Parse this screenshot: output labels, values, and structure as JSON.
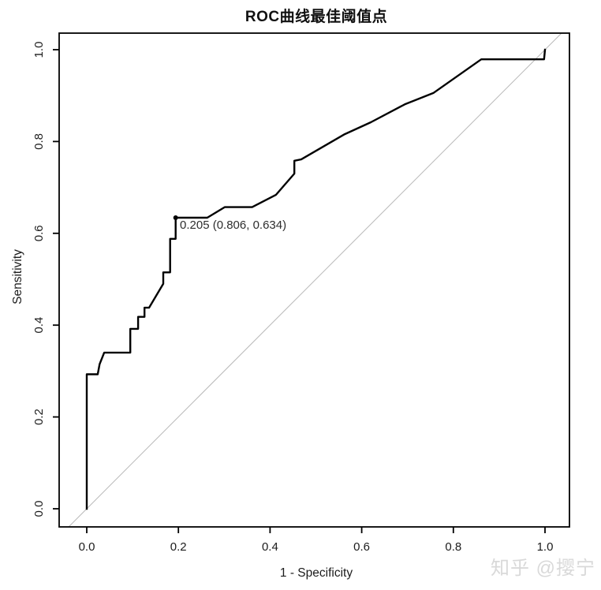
{
  "title": "ROC曲线最佳阈值点",
  "watermark": "知乎 @撄宁",
  "colors": {
    "background": "#ffffff",
    "curve": "#000000",
    "reference_line": "#b8b8b8",
    "axis": "#000000",
    "tick_text": "#1c1c1c",
    "annotation_text": "#2e2e2e",
    "watermark_text": "#d9d9d9"
  },
  "chart_data": {
    "type": "line",
    "title": "ROC曲线最佳阈值点",
    "xlabel": "1 - Specificity",
    "ylabel": "Sensitivity",
    "xlim": [
      0,
      1
    ],
    "ylim": [
      0,
      1
    ],
    "grid": false,
    "legend": "none",
    "x_ticks": [
      0.0,
      0.2,
      0.4,
      0.6,
      0.8,
      1.0
    ],
    "x_tick_labels": [
      "0.0",
      "0.2",
      "0.4",
      "0.6",
      "0.8",
      "1.0"
    ],
    "y_ticks": [
      0.0,
      0.2,
      0.4,
      0.6,
      0.8,
      1.0
    ],
    "y_tick_labels": [
      "0.0",
      "0.2",
      "0.4",
      "0.6",
      "0.8",
      "1.0"
    ],
    "series": [
      {
        "name": "ROC curve",
        "color": "#000000",
        "width": 2.4,
        "points": [
          [
            0.0,
            0.0
          ],
          [
            0.0,
            0.293
          ],
          [
            0.024,
            0.293
          ],
          [
            0.028,
            0.315
          ],
          [
            0.038,
            0.34
          ],
          [
            0.095,
            0.34
          ],
          [
            0.095,
            0.392
          ],
          [
            0.112,
            0.392
          ],
          [
            0.112,
            0.418
          ],
          [
            0.126,
            0.418
          ],
          [
            0.126,
            0.438
          ],
          [
            0.136,
            0.438
          ],
          [
            0.167,
            0.49
          ],
          [
            0.167,
            0.515
          ],
          [
            0.182,
            0.515
          ],
          [
            0.182,
            0.588
          ],
          [
            0.194,
            0.588
          ],
          [
            0.194,
            0.634
          ],
          [
            0.263,
            0.634
          ],
          [
            0.301,
            0.657
          ],
          [
            0.361,
            0.657
          ],
          [
            0.413,
            0.684
          ],
          [
            0.453,
            0.73
          ],
          [
            0.453,
            0.758
          ],
          [
            0.468,
            0.761
          ],
          [
            0.563,
            0.816
          ],
          [
            0.62,
            0.842
          ],
          [
            0.694,
            0.881
          ],
          [
            0.757,
            0.906
          ],
          [
            0.861,
            0.979
          ],
          [
            0.998,
            0.979
          ],
          [
            1.0,
            1.0
          ]
        ]
      },
      {
        "name": "chance diagonal (y = x)",
        "color": "#b8b8b8",
        "width": 1,
        "is_reference_diagonal": true
      }
    ],
    "best_threshold": {
      "threshold": 0.205,
      "specificity": 0.806,
      "sensitivity": 0.634,
      "x": 0.194,
      "y": 0.634,
      "label": "0.205 (0.806, 0.634)",
      "marker": "filled-dot"
    }
  }
}
